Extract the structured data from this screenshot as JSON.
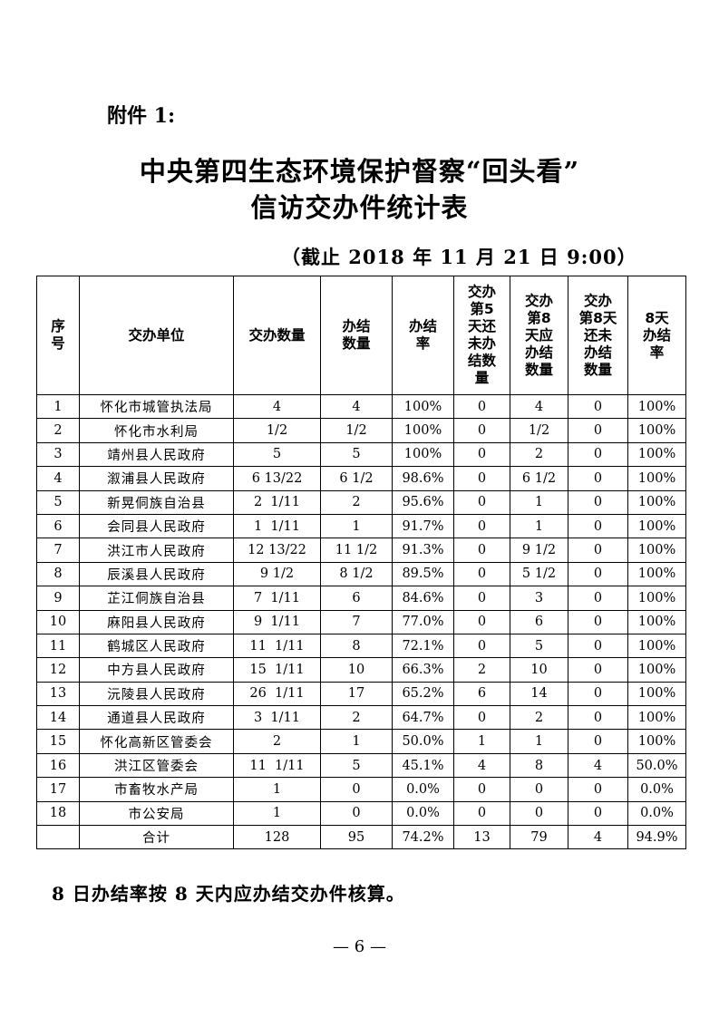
{
  "attachment_label": "附件 1:",
  "title_line1": "中央第四生态环境保护督察“回头看”",
  "title_line2": "信访交办件统计表",
  "subtitle": "（截止 2018 年 11 月 21 日 9:00）",
  "table": {
    "headers": [
      "序\n号",
      "交办单位",
      "交办数量",
      "办结\n数量",
      "办结\n率",
      "交办\n第5\n天还\n未办\n结数\n量",
      "交办\n第8\n天应\n办结\n数量",
      "交办\n第8天\n还未\n办结\n数量",
      "8天\n办结\n率"
    ],
    "rows": [
      [
        "1",
        "怀化市城管执法局",
        "4",
        "4",
        "100%",
        "0",
        "4",
        "0",
        "100%"
      ],
      [
        "2",
        "怀化市水利局",
        "1/2",
        "1/2",
        "100%",
        "0",
        "1/2",
        "0",
        "100%"
      ],
      [
        "3",
        "靖州县人民政府",
        "5",
        "5",
        "100%",
        "0",
        "2",
        "0",
        "100%"
      ],
      [
        "4",
        "溆浦县人民政府",
        "6 13/22",
        "6 1/2",
        "98.6%",
        "0",
        "6 1/2",
        "0",
        "100%"
      ],
      [
        "5",
        "新晃侗族自治县",
        "2  1/11",
        "2",
        "95.6%",
        "0",
        "1",
        "0",
        "100%"
      ],
      [
        "6",
        "会同县人民政府",
        "1  1/11",
        "1",
        "91.7%",
        "0",
        "1",
        "0",
        "100%"
      ],
      [
        "7",
        "洪江市人民政府",
        "12 13/22",
        "11 1/2",
        "91.3%",
        "0",
        "9 1/2",
        "0",
        "100%"
      ],
      [
        "8",
        "辰溪县人民政府",
        "9 1/2",
        "8 1/2",
        "89.5%",
        "0",
        "5 1/2",
        "0",
        "100%"
      ],
      [
        "9",
        "芷江侗族自治县",
        "7  1/11",
        "6",
        "84.6%",
        "0",
        "3",
        "0",
        "100%"
      ],
      [
        "10",
        "麻阳县人民政府",
        "9  1/11",
        "7",
        "77.0%",
        "0",
        "6",
        "0",
        "100%"
      ],
      [
        "11",
        "鹤城区人民政府",
        "11  1/11",
        "8",
        "72.1%",
        "0",
        "5",
        "0",
        "100%"
      ],
      [
        "12",
        "中方县人民政府",
        "15  1/11",
        "10",
        "66.3%",
        "2",
        "10",
        "0",
        "100%"
      ],
      [
        "13",
        "沅陵县人民政府",
        "26  1/11",
        "17",
        "65.2%",
        "6",
        "14",
        "0",
        "100%"
      ],
      [
        "14",
        "通道县人民政府",
        "3  1/11",
        "2",
        "64.7%",
        "0",
        "2",
        "0",
        "100%"
      ],
      [
        "15",
        "怀化高新区管委会",
        "2",
        "1",
        "50.0%",
        "1",
        "1",
        "0",
        "100%"
      ],
      [
        "16",
        "洪江区管委会",
        "11  1/11",
        "5",
        "45.1%",
        "4",
        "8",
        "4",
        "50.0%"
      ],
      [
        "17",
        "市畜牧水产局",
        "1",
        "0",
        "0.0%",
        "0",
        "0",
        "0",
        "0.0%"
      ],
      [
        "18",
        "市公安局",
        "1",
        "0",
        "0.0%",
        "0",
        "0",
        "0",
        "0.0%"
      ],
      [
        "",
        "合计",
        "128",
        "95",
        "74.2%",
        "13",
        "79",
        "4",
        "94.9%"
      ]
    ]
  },
  "note": "8 日办结率按 8 天内应办结交办件核算。",
  "page_number": "— 6 —"
}
